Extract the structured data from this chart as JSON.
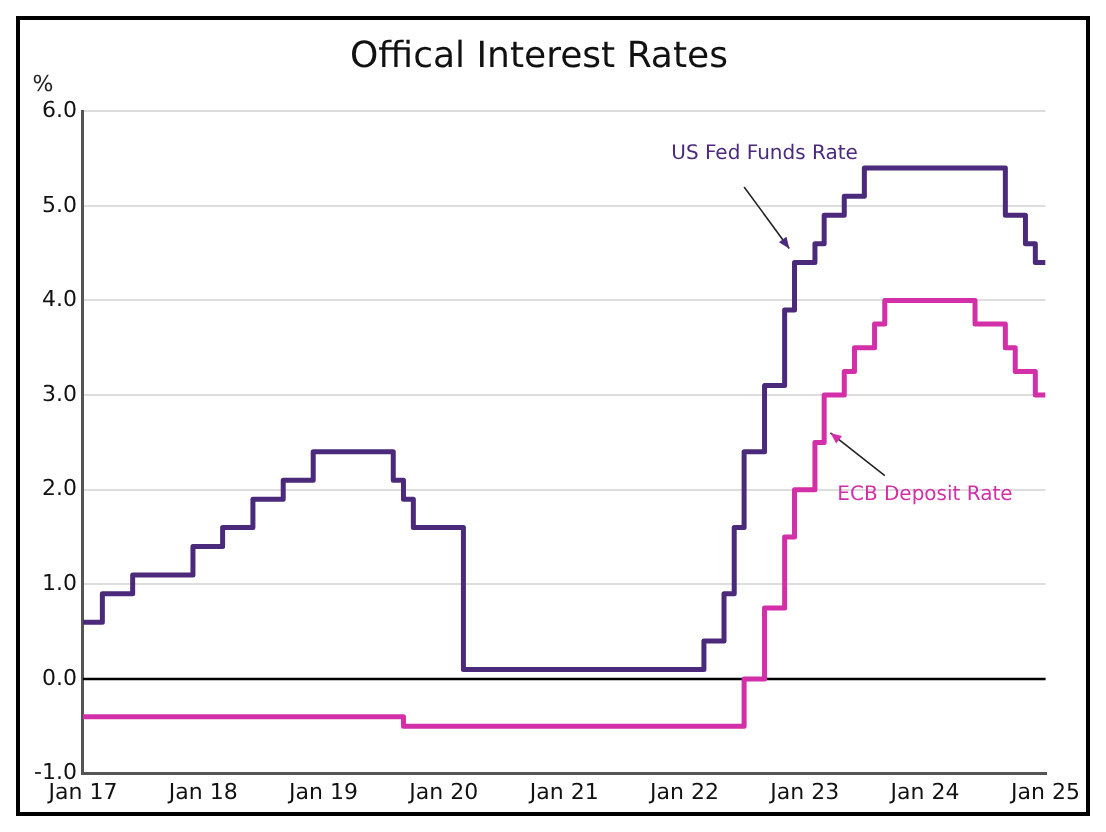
{
  "chart_data": {
    "type": "step",
    "title": "Offical Interest Rates",
    "ylabel": "%",
    "xlim": [
      "2017-01",
      "2025-01"
    ],
    "xticks": [
      {
        "value": "2017-01",
        "label": "Jan 17"
      },
      {
        "value": "2018-01",
        "label": "Jan 18"
      },
      {
        "value": "2019-01",
        "label": "Jan 19"
      },
      {
        "value": "2020-01",
        "label": "Jan 20"
      },
      {
        "value": "2021-01",
        "label": "Jan 21"
      },
      {
        "value": "2022-01",
        "label": "Jan 22"
      },
      {
        "value": "2023-01",
        "label": "Jan 23"
      },
      {
        "value": "2024-01",
        "label": "Jan 24"
      },
      {
        "value": "2025-01",
        "label": "Jan 25"
      }
    ],
    "ylim": [
      -1,
      6
    ],
    "yticks": [
      {
        "value": -1,
        "label": "-1.0"
      },
      {
        "value": 0,
        "label": "0.0"
      },
      {
        "value": 1,
        "label": "1.0"
      },
      {
        "value": 2,
        "label": "2.0"
      },
      {
        "value": 3,
        "label": "3.0"
      },
      {
        "value": 4,
        "label": "4.0"
      },
      {
        "value": 5,
        "label": "5.0"
      },
      {
        "value": 6,
        "label": "6.0"
      }
    ],
    "grid": "y",
    "legend": false,
    "ref_lines": [
      {
        "axis": "y",
        "value": 0,
        "color": "#000000"
      }
    ],
    "series": [
      {
        "name": "US Fed Funds Rate",
        "color": "#4b2a7b",
        "x": [
          "2017-01",
          "2017-03",
          "2017-06",
          "2017-12",
          "2018-03",
          "2018-06",
          "2018-09",
          "2018-12",
          "2019-08",
          "2019-09",
          "2019-10",
          "2020-03",
          "2022-03",
          "2022-05",
          "2022-06",
          "2022-07",
          "2022-09",
          "2022-11",
          "2022-12",
          "2023-02",
          "2023-03",
          "2023-05",
          "2023-07",
          "2024-09",
          "2024-11",
          "2024-12",
          "2025-01"
        ],
        "values": [
          0.6,
          0.9,
          1.1,
          1.4,
          1.6,
          1.9,
          2.1,
          2.4,
          2.1,
          1.9,
          1.6,
          0.1,
          0.4,
          0.9,
          1.6,
          2.4,
          3.1,
          3.9,
          4.4,
          4.6,
          4.9,
          5.1,
          5.4,
          4.9,
          4.6,
          4.4,
          4.4
        ]
      },
      {
        "name": "ECB Deposit Rate",
        "color": "#d22fa8",
        "x": [
          "2017-01",
          "2019-09",
          "2022-07",
          "2022-09",
          "2022-11",
          "2022-12",
          "2023-02",
          "2023-03",
          "2023-05",
          "2023-06",
          "2023-08",
          "2023-09",
          "2024-06",
          "2024-09",
          "2024-10",
          "2024-12",
          "2025-01"
        ],
        "values": [
          -0.4,
          -0.5,
          0.0,
          0.75,
          1.5,
          2.0,
          2.5,
          3.0,
          3.25,
          3.5,
          3.75,
          4.0,
          3.75,
          3.5,
          3.25,
          3.0,
          3.0
        ]
      }
    ]
  }
}
